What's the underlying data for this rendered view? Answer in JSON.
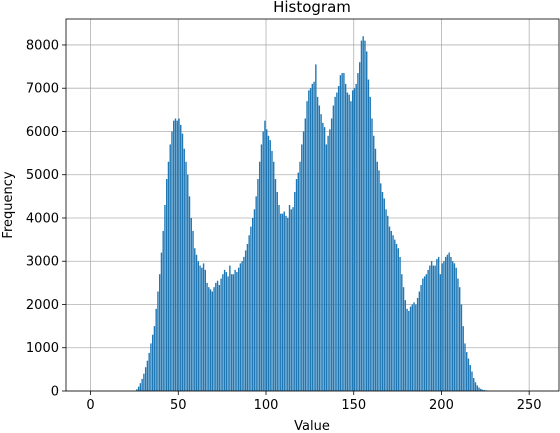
{
  "chart_data": {
    "type": "bar",
    "title": "Histogram",
    "xlabel": "Value",
    "ylabel": "Frequency",
    "xlim": [
      -14,
      267
    ],
    "ylim": [
      0,
      8600
    ],
    "grid": true,
    "xticks": [
      0,
      50,
      100,
      150,
      200,
      250
    ],
    "yticks": [
      0,
      1000,
      2000,
      3000,
      4000,
      5000,
      6000,
      7000,
      8000
    ],
    "bar_color": "#1f77b4",
    "bins": {
      "start": 0,
      "width": 1,
      "bar_width": 0.8,
      "values": [
        0,
        0,
        0,
        0,
        0,
        0,
        0,
        0,
        0,
        0,
        0,
        0,
        0,
        0,
        0,
        0,
        0,
        0,
        0,
        0,
        0,
        0,
        0,
        0,
        0,
        0,
        40,
        100,
        180,
        280,
        400,
        550,
        700,
        880,
        1100,
        1300,
        1500,
        1900,
        2300,
        2700,
        3200,
        3700,
        4300,
        4900,
        5300,
        5700,
        6000,
        6250,
        6300,
        6250,
        6300,
        6150,
        5950,
        5600,
        5300,
        5000,
        4500,
        4000,
        3700,
        3300,
        3150,
        3000,
        2900,
        2850,
        2950,
        2800,
        2500,
        2400,
        2350,
        2300,
        2400,
        2500,
        2550,
        2450,
        2600,
        2700,
        2800,
        2750,
        2650,
        2900,
        2700,
        2700,
        2800,
        2750,
        2850,
        2950,
        3000,
        3100,
        3250,
        3400,
        3600,
        3800,
        4000,
        4200,
        4500,
        4900,
        5300,
        5700,
        6000,
        6250,
        6050,
        5900,
        5800,
        5550,
        5300,
        4900,
        4600,
        4300,
        4100,
        4100,
        4150,
        4050,
        4000,
        4300,
        4200,
        4250,
        4600,
        4900,
        5050,
        5300,
        5700,
        6000,
        6300,
        6700,
        6950,
        7000,
        7100,
        7150,
        7550,
        6800,
        6600,
        6400,
        6200,
        6100,
        5700,
        5900,
        6050,
        6300,
        6600,
        6800,
        6900,
        7050,
        7300,
        7350,
        7350,
        7100,
        6900,
        6850,
        6700,
        6950,
        7000,
        7100,
        7350,
        7600,
        8100,
        8200,
        8100,
        7850,
        7200,
        6800,
        6300,
        5900,
        5600,
        5300,
        5100,
        4800,
        4600,
        4450,
        4200,
        4050,
        3800,
        3700,
        3600,
        3500,
        3400,
        3300,
        3100,
        2700,
        2400,
        2100,
        1900,
        1850,
        1950,
        2000,
        2050,
        2000,
        2150,
        2300,
        2450,
        2600,
        2650,
        2700,
        2800,
        2900,
        3000,
        2900,
        2900,
        3050,
        3100,
        2700,
        2950,
        3000,
        3100,
        3150,
        3200,
        3100,
        3000,
        2950,
        2850,
        2600,
        2400,
        2000,
        1500,
        1100,
        900,
        750,
        600,
        450,
        300,
        200,
        130,
        80,
        50,
        30,
        20,
        15,
        10,
        5,
        0,
        0,
        0,
        0,
        0,
        0,
        0,
        0,
        0,
        0,
        0,
        0,
        0,
        0,
        0,
        0,
        0,
        0,
        0,
        0,
        0,
        0,
        0,
        0,
        0,
        0,
        0,
        0
      ]
    }
  }
}
